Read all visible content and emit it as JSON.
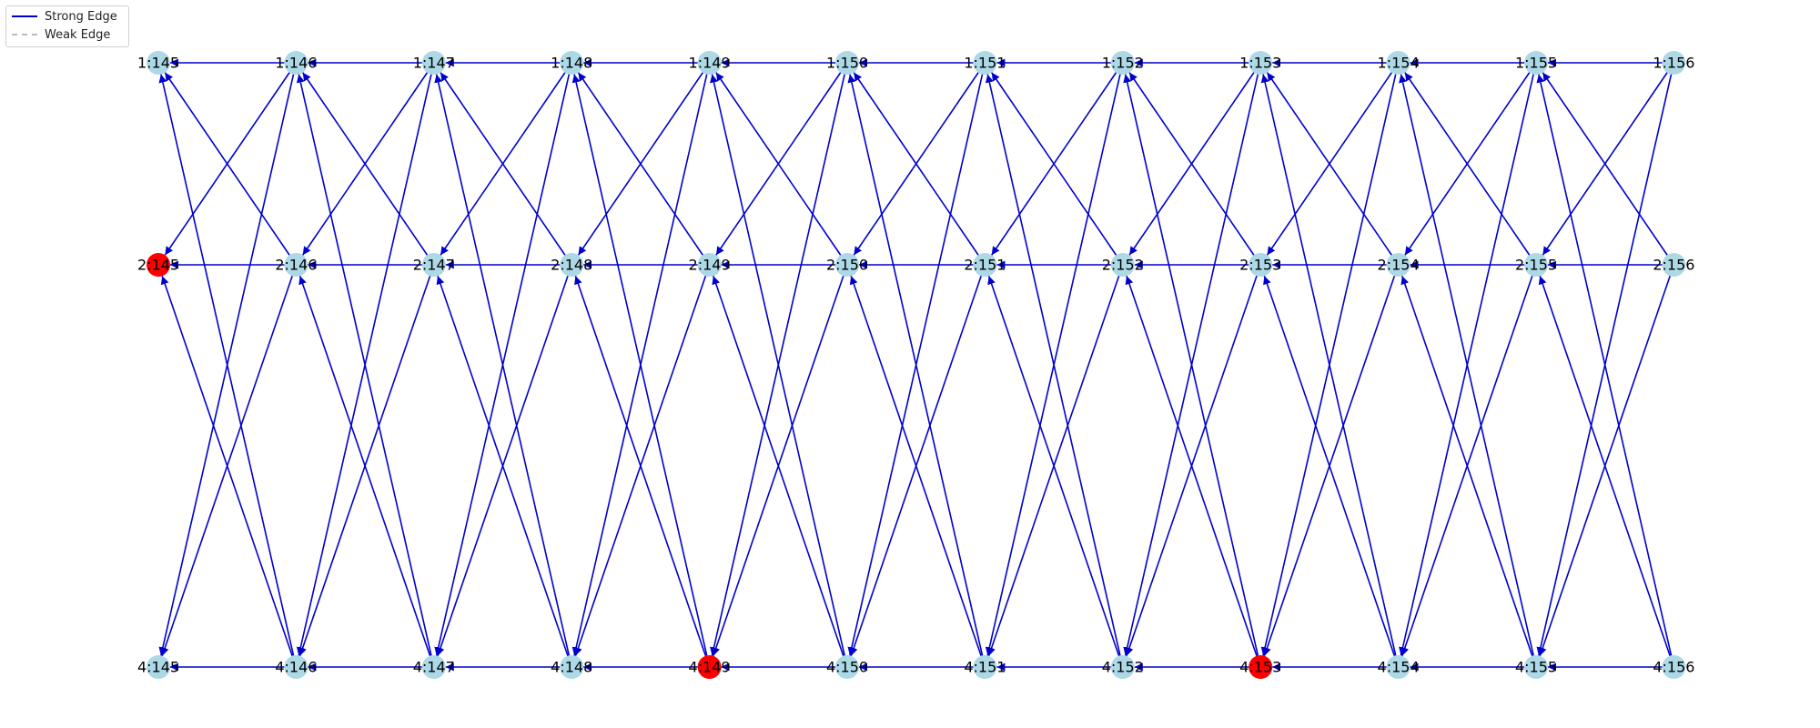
{
  "legend": {
    "strong_label": "Strong Edge",
    "weak_label": "Weak Edge",
    "strong_color": "#0000cc",
    "weak_color": "#bbbbbb"
  },
  "colors": {
    "node_default": "#add8e6",
    "node_highlight": "#ff0000"
  },
  "columns": [
    "145",
    "146",
    "147",
    "148",
    "149",
    "150",
    "151",
    "152",
    "153",
    "154",
    "155",
    "156"
  ],
  "rows": [
    {
      "id": "1",
      "labels": [
        "1:145",
        "1:146",
        "1:147",
        "1:148",
        "1:149",
        "1:150",
        "1:151",
        "1:152",
        "1:153",
        "1:154",
        "1:155",
        "1:156"
      ]
    },
    {
      "id": "2",
      "labels": [
        "2:145",
        "2:146",
        "2:147",
        "2:148",
        "2:149",
        "2:150",
        "2:151",
        "2:152",
        "2:153",
        "2:154",
        "2:155",
        "2:156"
      ]
    },
    {
      "id": "4",
      "labels": [
        "4:145",
        "4:146",
        "4:147",
        "4:148",
        "4:149",
        "4:150",
        "4:151",
        "4:152",
        "4:153",
        "4:154",
        "4:155",
        "4:156"
      ]
    }
  ],
  "highlighted_nodes": [
    "2:145",
    "4:149",
    "4:153"
  ],
  "edges": {
    "strong": [
      [
        "1:146",
        "1:145"
      ],
      [
        "1:147",
        "1:146"
      ],
      [
        "1:148",
        "1:147"
      ],
      [
        "1:149",
        "1:148"
      ],
      [
        "1:150",
        "1:149"
      ],
      [
        "1:151",
        "1:150"
      ],
      [
        "1:152",
        "1:151"
      ],
      [
        "1:153",
        "1:152"
      ],
      [
        "1:154",
        "1:153"
      ],
      [
        "1:155",
        "1:154"
      ],
      [
        "1:156",
        "1:155"
      ],
      [
        "2:146",
        "2:145"
      ],
      [
        "2:147",
        "2:146"
      ],
      [
        "2:148",
        "2:147"
      ],
      [
        "2:149",
        "2:148"
      ],
      [
        "2:150",
        "2:149"
      ],
      [
        "2:151",
        "2:150"
      ],
      [
        "2:152",
        "2:151"
      ],
      [
        "2:153",
        "2:152"
      ],
      [
        "2:154",
        "2:153"
      ],
      [
        "2:155",
        "2:154"
      ],
      [
        "2:156",
        "2:155"
      ],
      [
        "4:146",
        "4:145"
      ],
      [
        "4:147",
        "4:146"
      ],
      [
        "4:148",
        "4:147"
      ],
      [
        "4:149",
        "4:148"
      ],
      [
        "4:150",
        "4:149"
      ],
      [
        "4:151",
        "4:150"
      ],
      [
        "4:152",
        "4:151"
      ],
      [
        "4:153",
        "4:152"
      ],
      [
        "4:154",
        "4:153"
      ],
      [
        "4:155",
        "4:154"
      ],
      [
        "4:156",
        "4:155"
      ],
      [
        "2:146",
        "1:145"
      ],
      [
        "2:147",
        "1:146"
      ],
      [
        "2:148",
        "1:147"
      ],
      [
        "2:149",
        "1:148"
      ],
      [
        "2:150",
        "1:149"
      ],
      [
        "2:151",
        "1:150"
      ],
      [
        "2:152",
        "1:151"
      ],
      [
        "2:153",
        "1:152"
      ],
      [
        "2:154",
        "1:153"
      ],
      [
        "2:155",
        "1:154"
      ],
      [
        "2:156",
        "1:155"
      ],
      [
        "1:146",
        "2:145"
      ],
      [
        "1:147",
        "2:146"
      ],
      [
        "1:148",
        "2:147"
      ],
      [
        "1:149",
        "2:148"
      ],
      [
        "1:150",
        "2:149"
      ],
      [
        "1:151",
        "2:150"
      ],
      [
        "1:152",
        "2:151"
      ],
      [
        "1:153",
        "2:152"
      ],
      [
        "1:154",
        "2:153"
      ],
      [
        "1:155",
        "2:154"
      ],
      [
        "1:156",
        "2:155"
      ],
      [
        "4:146",
        "1:145"
      ],
      [
        "4:147",
        "1:146"
      ],
      [
        "4:148",
        "1:147"
      ],
      [
        "4:149",
        "1:148"
      ],
      [
        "4:150",
        "1:149"
      ],
      [
        "4:151",
        "1:150"
      ],
      [
        "4:152",
        "1:151"
      ],
      [
        "4:153",
        "1:152"
      ],
      [
        "4:154",
        "1:153"
      ],
      [
        "4:155",
        "1:154"
      ],
      [
        "4:156",
        "1:155"
      ],
      [
        "1:146",
        "4:145"
      ],
      [
        "1:147",
        "4:146"
      ],
      [
        "1:148",
        "4:147"
      ],
      [
        "1:149",
        "4:148"
      ],
      [
        "1:150",
        "4:149"
      ],
      [
        "1:151",
        "4:150"
      ],
      [
        "1:152",
        "4:151"
      ],
      [
        "1:153",
        "4:152"
      ],
      [
        "1:154",
        "4:153"
      ],
      [
        "1:155",
        "4:154"
      ],
      [
        "1:156",
        "4:155"
      ],
      [
        "4:146",
        "2:145"
      ],
      [
        "4:147",
        "2:146"
      ],
      [
        "4:148",
        "2:147"
      ],
      [
        "4:149",
        "2:148"
      ],
      [
        "4:150",
        "2:149"
      ],
      [
        "4:151",
        "2:150"
      ],
      [
        "4:152",
        "2:151"
      ],
      [
        "4:153",
        "2:152"
      ],
      [
        "4:154",
        "2:153"
      ],
      [
        "4:155",
        "2:154"
      ],
      [
        "4:156",
        "2:155"
      ],
      [
        "2:146",
        "4:145"
      ],
      [
        "2:147",
        "4:146"
      ],
      [
        "2:148",
        "4:147"
      ],
      [
        "2:149",
        "4:148"
      ],
      [
        "2:150",
        "4:149"
      ],
      [
        "2:151",
        "4:150"
      ],
      [
        "2:152",
        "4:151"
      ],
      [
        "2:153",
        "4:152"
      ],
      [
        "2:154",
        "4:153"
      ],
      [
        "2:155",
        "4:154"
      ],
      [
        "2:156",
        "4:155"
      ]
    ],
    "weak": []
  }
}
